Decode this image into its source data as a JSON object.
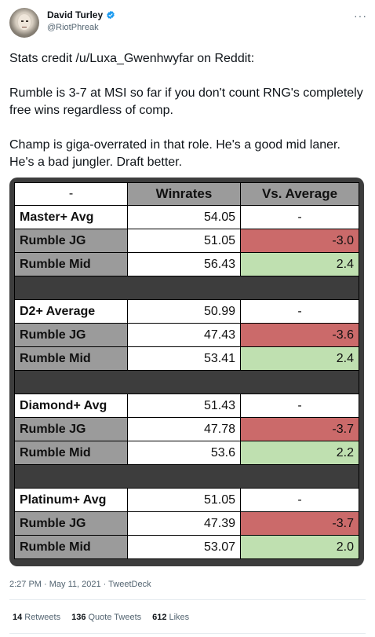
{
  "author": {
    "name": "David Turley",
    "handle": "@RiotPhreak",
    "verified": true
  },
  "menu_icon": "more-icon",
  "tweet": {
    "paragraphs": [
      "Stats credit /u/Luxa_Gwenhwyfar on Reddit:",
      "Rumble is 3-7 at MSI so far if you don't count RNG's completely free wins regardless of comp.",
      "Champ is giga-overrated in that role. He's a good mid laner. He's a bad jungler. Draft better."
    ]
  },
  "table": {
    "headers": [
      "-",
      "Winrates",
      "Vs. Average"
    ],
    "groups": [
      {
        "label": "Master+ Avg",
        "winrate": "54.05",
        "vs": "-",
        "rows": [
          {
            "label": "Rumble JG",
            "winrate": "51.05",
            "vs": "-3.0",
            "tone": "neg"
          },
          {
            "label": "Rumble Mid",
            "winrate": "56.43",
            "vs": "2.4",
            "tone": "pos"
          }
        ]
      },
      {
        "label": "D2+ Average",
        "winrate": "50.99",
        "vs": "-",
        "rows": [
          {
            "label": "Rumble JG",
            "winrate": "47.43",
            "vs": "-3.6",
            "tone": "neg"
          },
          {
            "label": "Rumble Mid",
            "winrate": "53.41",
            "vs": "2.4",
            "tone": "pos"
          }
        ]
      },
      {
        "label": "Diamond+ Avg",
        "winrate": "51.43",
        "vs": "-",
        "rows": [
          {
            "label": "Rumble JG",
            "winrate": "47.78",
            "vs": "-3.7",
            "tone": "neg"
          },
          {
            "label": "Rumble Mid",
            "winrate": "53.6",
            "vs": "2.2",
            "tone": "pos"
          }
        ]
      },
      {
        "label": "Platinum+ Avg",
        "winrate": "51.05",
        "vs": "-",
        "rows": [
          {
            "label": "Rumble JG",
            "winrate": "47.39",
            "vs": "-3.7",
            "tone": "neg"
          },
          {
            "label": "Rumble Mid",
            "winrate": "53.07",
            "vs": "2.0",
            "tone": "pos"
          }
        ]
      }
    ]
  },
  "meta": "2:27 PM · May 11, 2021 · TweetDeck",
  "stats": [
    {
      "count": "14",
      "label": "Retweets"
    },
    {
      "count": "136",
      "label": "Quote Tweets"
    },
    {
      "count": "612",
      "label": "Likes"
    }
  ],
  "colors": {
    "verified": "#1d9bf0",
    "negative": "#cb6a6a",
    "positive": "#bfe0b0",
    "label_gray": "#9b9b9b",
    "media_bg": "#3d3d3d"
  }
}
